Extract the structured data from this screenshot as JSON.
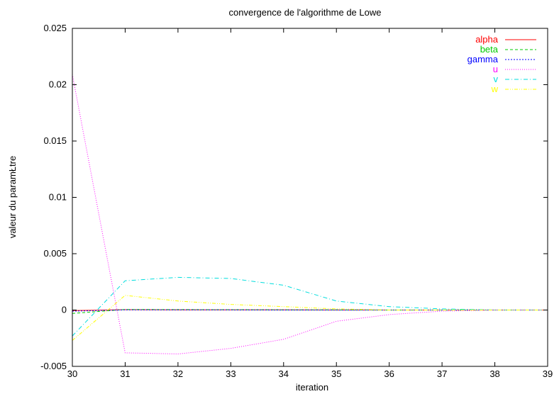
{
  "chart_data": {
    "type": "line",
    "title": "convergence de l'algorithme de Lowe",
    "xlabel": "iteration",
    "ylabel": "valeur du paramŁtre",
    "xlim": [
      30,
      39
    ],
    "ylim": [
      -0.005,
      0.025
    ],
    "xticks": [
      "30",
      "31",
      "32",
      "33",
      "34",
      "35",
      "36",
      "37",
      "38",
      "39"
    ],
    "yticks": [
      "-0.005",
      "0",
      "0.005",
      "0.01",
      "0.015",
      "0.02",
      "0.025"
    ],
    "grid": false,
    "legend_position": "top-right",
    "x": [
      30,
      31,
      32,
      33,
      34,
      35,
      36,
      37,
      38,
      39
    ],
    "series": [
      {
        "name": "alpha",
        "color": "#ff0000",
        "dash": "solid",
        "values": [
          -5e-05,
          3e-05,
          2e-05,
          1e-05,
          1e-05,
          0.0,
          0.0,
          0.0,
          0.0,
          0.0
        ]
      },
      {
        "name": "beta",
        "color": "#00cc00",
        "dash": "dashed",
        "values": [
          -0.0003,
          5e-05,
          4e-05,
          3e-05,
          2e-05,
          1e-05,
          0.0,
          0.0,
          0.0,
          0.0
        ]
      },
      {
        "name": "gamma",
        "color": "#0000ff",
        "dash": "short-dashed",
        "values": [
          -0.0001,
          2e-05,
          1e-05,
          1e-05,
          0.0,
          0.0,
          0.0,
          0.0,
          0.0,
          0.0
        ]
      },
      {
        "name": "u",
        "color": "#ff00ff",
        "dash": "dotted",
        "values": [
          0.0209,
          -0.0038,
          -0.0039,
          -0.0034,
          -0.0026,
          -0.001,
          -0.0004,
          -0.0001,
          0.0,
          0.0
        ]
      },
      {
        "name": "v",
        "color": "#00dddd",
        "dash": "dash-dot",
        "values": [
          -0.0023,
          0.0026,
          0.0029,
          0.0028,
          0.0022,
          0.0008,
          0.0003,
          0.0001,
          0.0,
          0.0
        ]
      },
      {
        "name": "w",
        "color": "#ffff00",
        "dash": "dash-dot-dot",
        "values": [
          -0.0027,
          0.0013,
          0.0008,
          0.0005,
          0.0003,
          0.0001,
          0.0,
          0.0,
          0.0,
          0.0
        ]
      }
    ]
  }
}
